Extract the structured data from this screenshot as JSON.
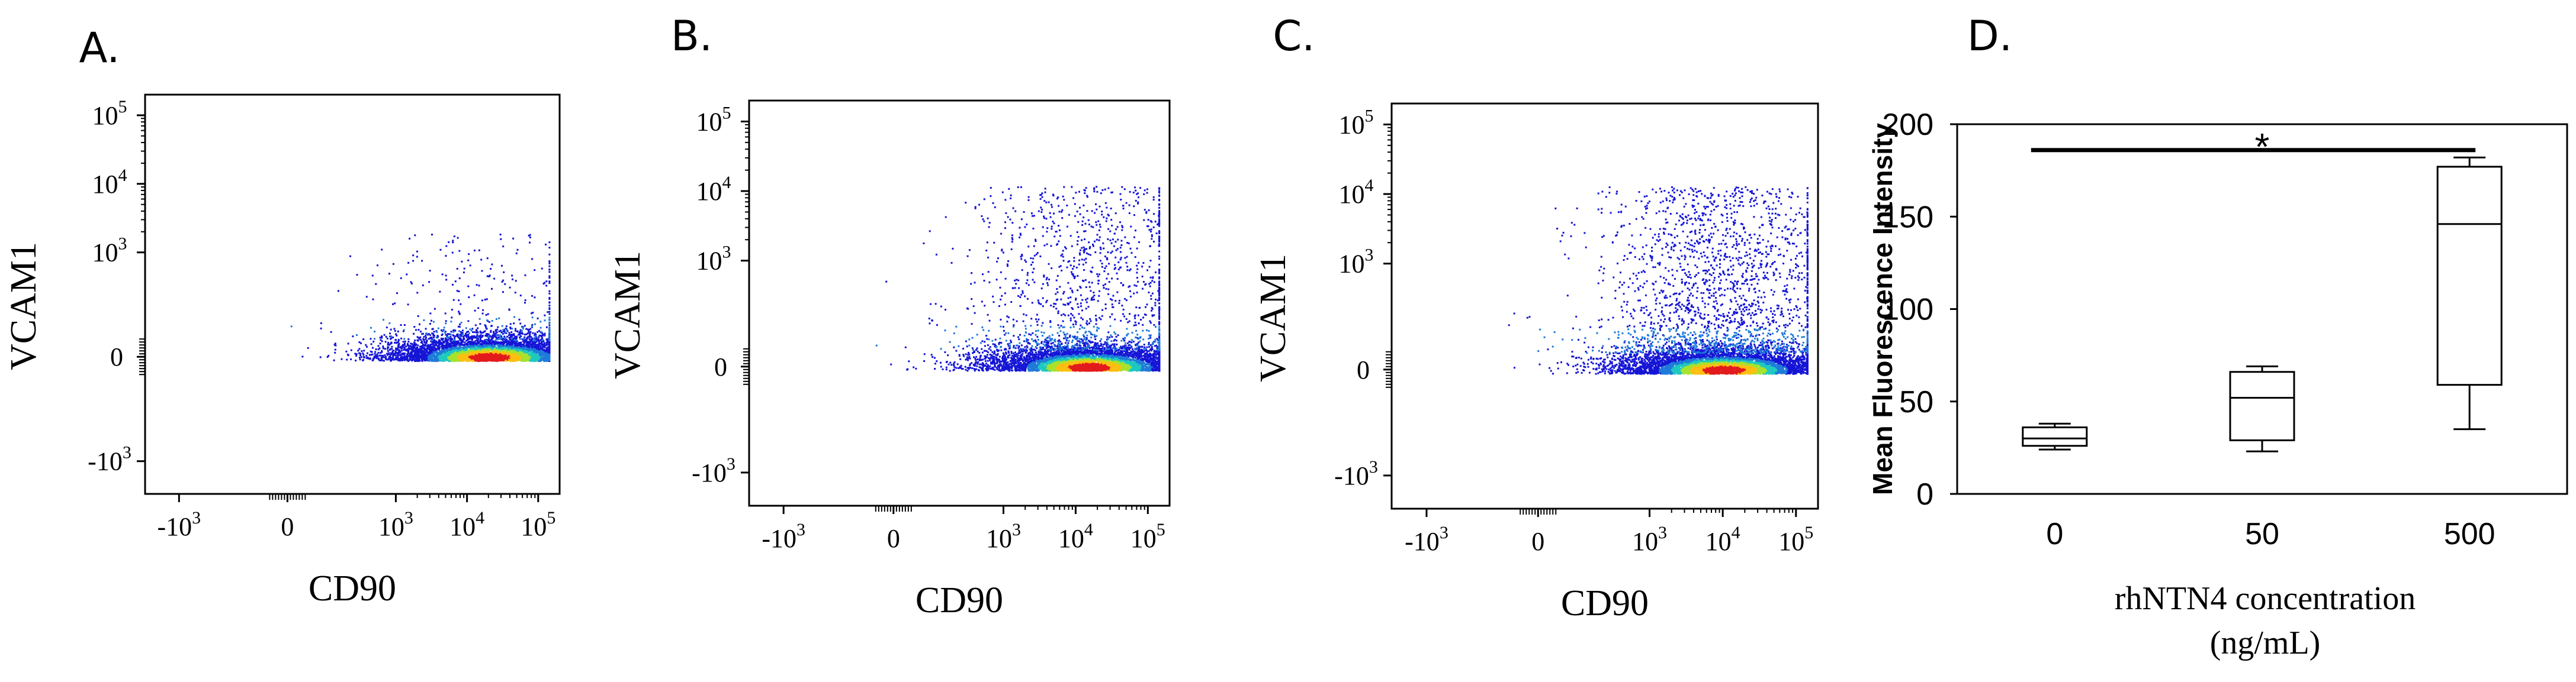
{
  "chart_data": [
    {
      "type": "scatter",
      "panel": "A.",
      "xlabel": "CD90",
      "ylabel": "VCAM1",
      "x_scale": "biexponential",
      "y_scale": "biexponential",
      "xlim": [
        -3000,
        200000
      ],
      "ylim": [
        -3000,
        200000
      ],
      "x_ticks": [
        -1000,
        0,
        1000,
        10000,
        100000
      ],
      "y_ticks": [
        -1000,
        0,
        1000,
        10000,
        100000
      ],
      "density_peak": {
        "x": 20000,
        "y": 0
      },
      "y_spread_max": 2000
    },
    {
      "type": "scatter",
      "panel": "B.",
      "xlabel": "CD90",
      "ylabel": "VCAM1",
      "x_scale": "biexponential",
      "y_scale": "biexponential",
      "xlim": [
        -3000,
        200000
      ],
      "ylim": [
        -3000,
        200000
      ],
      "x_ticks": [
        -1000,
        0,
        1000,
        10000,
        100000
      ],
      "y_ticks": [
        -1000,
        0,
        1000,
        10000,
        100000
      ],
      "density_peak": {
        "x": 15000,
        "y": 0
      },
      "y_spread_max": 12000
    },
    {
      "type": "scatter",
      "panel": "C.",
      "xlabel": "CD90",
      "ylabel": "VCAM1",
      "x_scale": "biexponential",
      "y_scale": "biexponential",
      "xlim": [
        -3000,
        200000
      ],
      "ylim": [
        -3000,
        200000
      ],
      "x_ticks": [
        -1000,
        0,
        1000,
        10000,
        100000
      ],
      "y_ticks": [
        -1000,
        0,
        1000,
        10000,
        100000
      ],
      "density_peak": {
        "x": 10000,
        "y": 0
      },
      "y_spread_max": 13000
    },
    {
      "type": "box",
      "panel": "D.",
      "xlabel": "rhNTN4 concentration (ng/mL)",
      "xlabel_lines": [
        "rhNTN4 concentration",
        "(ng/mL)"
      ],
      "ylabel": "Mean Fluorescence Intensity",
      "ylim": [
        0,
        200
      ],
      "y_ticks": [
        0,
        50,
        100,
        150,
        200
      ],
      "categories": [
        "0",
        "50",
        "500"
      ],
      "boxes": [
        {
          "category": "0",
          "min": 24,
          "q1": 26,
          "median": 30,
          "q3": 36,
          "max": 38
        },
        {
          "category": "50",
          "min": 23,
          "q1": 29,
          "median": 52,
          "q3": 66,
          "max": 69
        },
        {
          "category": "500",
          "min": 35,
          "q1": 59,
          "median": 146,
          "q3": 177,
          "max": 182
        }
      ],
      "significance": {
        "from": "0",
        "to": "500",
        "label": "*",
        "y": 186
      }
    }
  ]
}
